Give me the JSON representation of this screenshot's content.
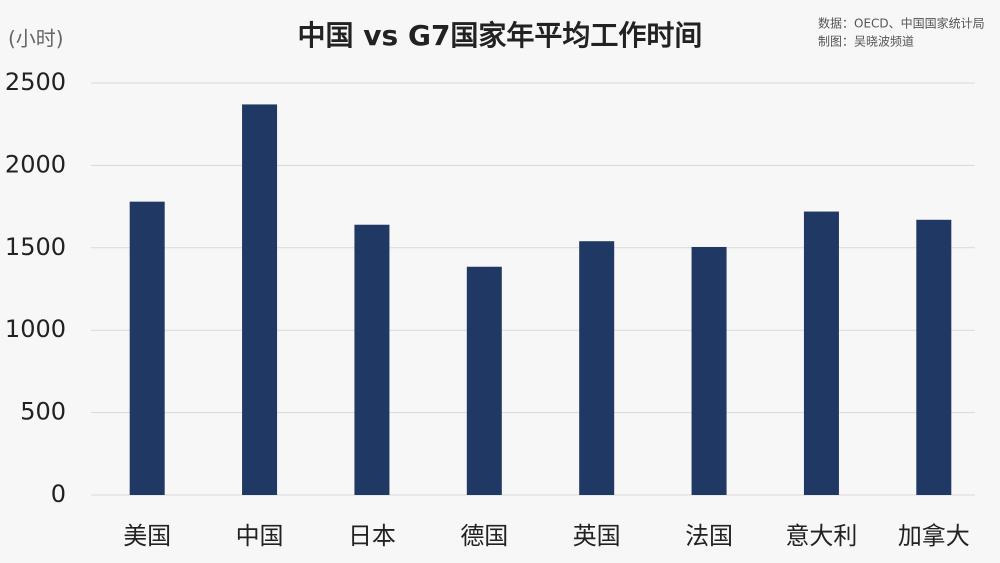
{
  "chart_data": {
    "type": "bar",
    "title": "中国 vs G7国家年平均工作时间",
    "y_axis_label": "(小时)",
    "source": [
      "数据：OECD、中国国家统计局",
      "制图：吴晓波频道"
    ],
    "categories": [
      "美国",
      "中国",
      "日本",
      "德国",
      "英国",
      "法国",
      "意大利",
      "加拿大"
    ],
    "values": [
      1780,
      2370,
      1640,
      1385,
      1540,
      1505,
      1720,
      1670
    ],
    "color": "#1f3864",
    "ylim": [
      0,
      2500
    ],
    "yticks": [
      0,
      500,
      1000,
      1500,
      2000,
      2500
    ],
    "grid": true
  }
}
